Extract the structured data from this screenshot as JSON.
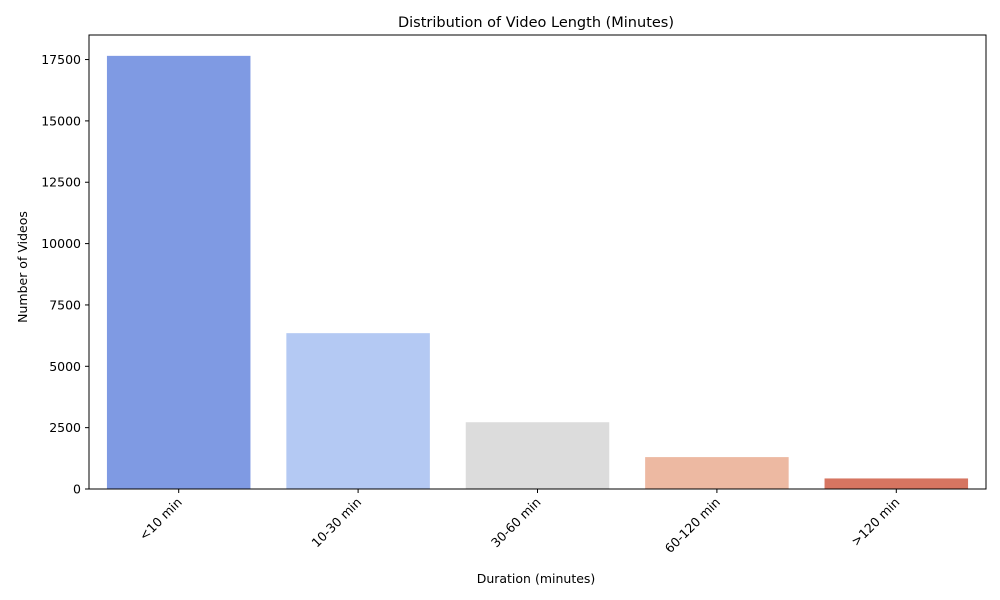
{
  "chart_data": {
    "type": "bar",
    "title": "Distribution of Video Length (Minutes)",
    "xlabel": "Duration (minutes)",
    "ylabel": "Number of Videos",
    "categories": [
      "<10 min",
      "10-30 min",
      "30-60 min",
      "60-120 min",
      ">120 min"
    ],
    "values": [
      17650,
      6350,
      2720,
      1300,
      430
    ],
    "colors": [
      "#7f9ae3",
      "#b4c9f3",
      "#dcdcdc",
      "#edb9a2",
      "#d67561"
    ],
    "ylim": [
      0,
      18500
    ],
    "yticks": [
      0,
      2500,
      5000,
      7500,
      10000,
      12500,
      15000,
      17500
    ],
    "ytick_labels": [
      "0",
      "2500",
      "5000",
      "7500",
      "10000",
      "12500",
      "15000",
      "17500"
    ],
    "xtick_rotation": 45,
    "grid": false,
    "legend": "none"
  }
}
